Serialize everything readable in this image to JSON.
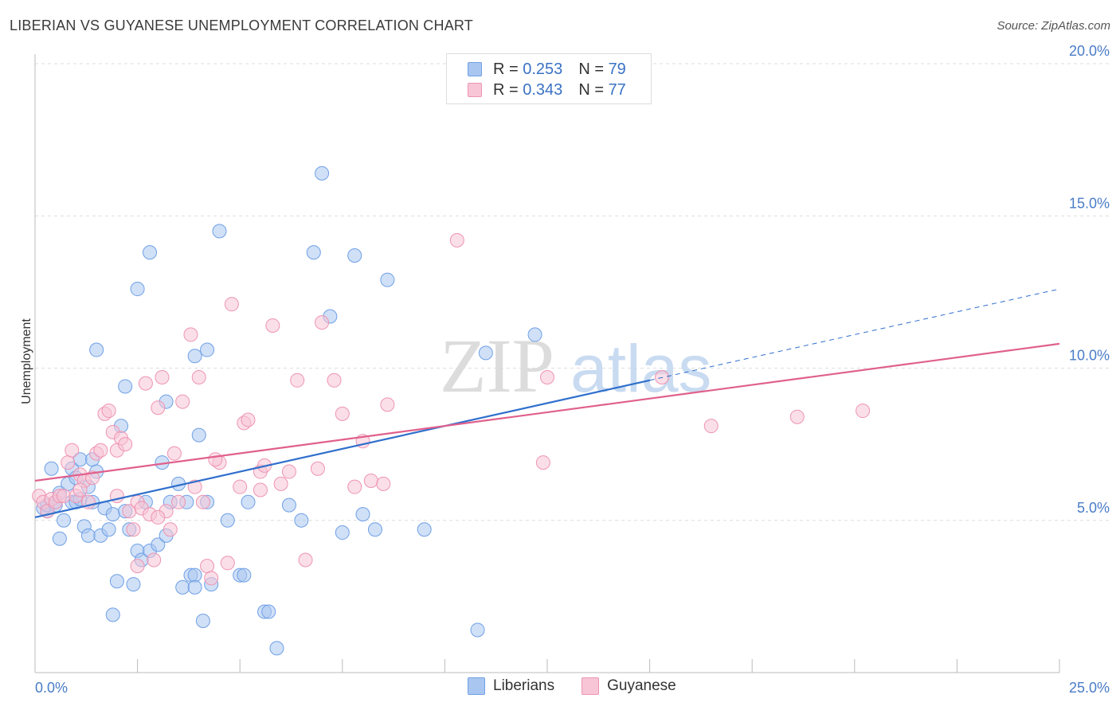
{
  "title": "LIBERIAN VS GUYANESE UNEMPLOYMENT CORRELATION CHART",
  "source": "Source: ZipAtlas.com",
  "watermark": {
    "zip": "ZIP",
    "atlas": "atlas"
  },
  "legend_top": [
    {
      "r_label": "R =",
      "r_value": "0.253",
      "n_label": "N =",
      "n_value": "79"
    },
    {
      "r_label": "R =",
      "r_value": "0.343",
      "n_label": "N =",
      "n_value": "77"
    }
  ],
  "chart_data": {
    "type": "scatter",
    "title": "LIBERIAN VS GUYANESE UNEMPLOYMENT CORRELATION CHART",
    "xlabel": "",
    "ylabel": "Unemployment",
    "xlim": [
      0,
      25
    ],
    "ylim": [
      0,
      20
    ],
    "x_tick_labels": [
      "0.0%",
      "25.0%"
    ],
    "y_ticks": [
      5,
      10,
      15,
      20
    ],
    "y_tick_labels": [
      "5.0%",
      "10.0%",
      "15.0%",
      "20.0%"
    ],
    "grid": true,
    "legend_position": "bottom-center",
    "series": [
      {
        "name": "Liberians",
        "color": "#6fa0e6",
        "fill": "#a9c6f0",
        "trend_color": "#2f6fcc",
        "trend": {
          "x0": 0,
          "y0": 5.1,
          "x1": 15,
          "y1": 9.6,
          "dash_x1": 25,
          "dash_y1": 12.6
        },
        "points": [
          [
            0.2,
            5.4
          ],
          [
            0.3,
            5.3
          ],
          [
            0.3,
            5.5
          ],
          [
            0.4,
            6.7
          ],
          [
            0.5,
            5.5
          ],
          [
            0.5,
            5.6
          ],
          [
            0.6,
            4.4
          ],
          [
            0.6,
            5.9
          ],
          [
            0.7,
            5.0
          ],
          [
            0.8,
            6.2
          ],
          [
            0.9,
            5.6
          ],
          [
            0.9,
            6.7
          ],
          [
            1.0,
            5.6
          ],
          [
            1.0,
            6.4
          ],
          [
            1.1,
            5.7
          ],
          [
            1.1,
            7.0
          ],
          [
            1.2,
            4.8
          ],
          [
            1.3,
            6.1
          ],
          [
            1.3,
            4.5
          ],
          [
            1.4,
            7.0
          ],
          [
            1.4,
            5.6
          ],
          [
            1.5,
            6.6
          ],
          [
            1.6,
            4.5
          ],
          [
            1.7,
            5.4
          ],
          [
            1.8,
            4.7
          ],
          [
            1.9,
            5.2
          ],
          [
            1.9,
            1.9
          ],
          [
            2.0,
            3.0
          ],
          [
            2.1,
            8.1
          ],
          [
            2.2,
            5.3
          ],
          [
            2.3,
            4.7
          ],
          [
            2.4,
            2.9
          ],
          [
            2.5,
            4.0
          ],
          [
            2.6,
            3.7
          ],
          [
            2.7,
            5.6
          ],
          [
            2.8,
            4.0
          ],
          [
            3.0,
            4.2
          ],
          [
            3.1,
            6.9
          ],
          [
            3.2,
            4.5
          ],
          [
            3.3,
            5.6
          ],
          [
            3.5,
            6.2
          ],
          [
            3.6,
            2.8
          ],
          [
            3.7,
            5.6
          ],
          [
            3.8,
            3.2
          ],
          [
            3.9,
            3.2
          ],
          [
            3.9,
            2.8
          ],
          [
            4.1,
            1.7
          ],
          [
            4.2,
            5.6
          ],
          [
            4.3,
            2.9
          ],
          [
            4.5,
            14.5
          ],
          [
            4.7,
            5.0
          ],
          [
            5.0,
            3.2
          ],
          [
            5.1,
            3.2
          ],
          [
            5.2,
            5.6
          ],
          [
            5.6,
            2.0
          ],
          [
            5.7,
            2.0
          ],
          [
            5.9,
            0.8
          ],
          [
            6.2,
            5.5
          ],
          [
            6.5,
            5.0
          ],
          [
            6.8,
            13.8
          ],
          [
            7.0,
            16.4
          ],
          [
            7.2,
            11.7
          ],
          [
            7.5,
            4.6
          ],
          [
            7.8,
            13.7
          ],
          [
            8.0,
            5.2
          ],
          [
            8.3,
            4.7
          ],
          [
            8.6,
            12.9
          ],
          [
            9.5,
            4.7
          ],
          [
            10.8,
            1.4
          ],
          [
            11.0,
            10.5
          ],
          [
            12.2,
            11.1
          ],
          [
            1.5,
            10.6
          ],
          [
            2.2,
            9.4
          ],
          [
            2.5,
            12.6
          ],
          [
            2.8,
            13.8
          ],
          [
            3.2,
            8.9
          ],
          [
            3.9,
            10.4
          ],
          [
            4.0,
            7.8
          ],
          [
            4.2,
            10.6
          ]
        ]
      },
      {
        "name": "Guyanese",
        "color": "#ee94b2",
        "fill": "#f7c5d6",
        "trend_color": "#e0608c",
        "trend": {
          "x0": 0,
          "y0": 6.3,
          "x1": 25,
          "y1": 10.8
        },
        "points": [
          [
            0.1,
            5.8
          ],
          [
            0.2,
            5.6
          ],
          [
            0.3,
            5.3
          ],
          [
            0.4,
            5.7
          ],
          [
            0.5,
            5.6
          ],
          [
            0.6,
            5.8
          ],
          [
            0.7,
            5.8
          ],
          [
            0.8,
            6.9
          ],
          [
            0.9,
            7.3
          ],
          [
            1.0,
            5.8
          ],
          [
            1.1,
            6.5
          ],
          [
            1.2,
            6.3
          ],
          [
            1.3,
            5.6
          ],
          [
            1.4,
            6.4
          ],
          [
            1.5,
            7.2
          ],
          [
            1.6,
            7.3
          ],
          [
            1.7,
            8.5
          ],
          [
            1.8,
            8.6
          ],
          [
            1.9,
            7.9
          ],
          [
            2.0,
            7.3
          ],
          [
            2.1,
            7.7
          ],
          [
            2.2,
            7.5
          ],
          [
            2.3,
            5.3
          ],
          [
            2.4,
            4.7
          ],
          [
            2.5,
            5.6
          ],
          [
            2.5,
            3.5
          ],
          [
            2.6,
            5.4
          ],
          [
            2.7,
            9.5
          ],
          [
            2.8,
            5.2
          ],
          [
            2.9,
            3.7
          ],
          [
            3.0,
            8.7
          ],
          [
            3.1,
            9.7
          ],
          [
            3.2,
            5.3
          ],
          [
            3.3,
            4.7
          ],
          [
            3.4,
            7.2
          ],
          [
            3.5,
            5.6
          ],
          [
            3.6,
            8.9
          ],
          [
            3.8,
            11.1
          ],
          [
            3.9,
            6.1
          ],
          [
            4.0,
            9.7
          ],
          [
            4.1,
            5.6
          ],
          [
            4.2,
            3.5
          ],
          [
            4.3,
            3.1
          ],
          [
            4.5,
            6.9
          ],
          [
            4.7,
            3.6
          ],
          [
            4.8,
            12.1
          ],
          [
            5.0,
            6.1
          ],
          [
            5.1,
            8.2
          ],
          [
            5.2,
            8.3
          ],
          [
            5.5,
            6.6
          ],
          [
            5.6,
            6.8
          ],
          [
            5.8,
            11.4
          ],
          [
            6.0,
            6.2
          ],
          [
            6.2,
            6.6
          ],
          [
            6.4,
            9.6
          ],
          [
            6.6,
            3.7
          ],
          [
            6.9,
            6.7
          ],
          [
            7.0,
            11.5
          ],
          [
            7.3,
            9.6
          ],
          [
            7.5,
            8.5
          ],
          [
            7.8,
            6.1
          ],
          [
            8.0,
            7.6
          ],
          [
            8.2,
            6.3
          ],
          [
            8.5,
            6.2
          ],
          [
            8.6,
            8.8
          ],
          [
            10.3,
            14.2
          ],
          [
            12.4,
            6.9
          ],
          [
            12.5,
            9.7
          ],
          [
            15.3,
            9.7
          ],
          [
            16.5,
            8.1
          ],
          [
            18.6,
            8.4
          ],
          [
            20.2,
            8.6
          ],
          [
            1.1,
            6.0
          ],
          [
            2.0,
            5.8
          ],
          [
            3.0,
            5.1
          ],
          [
            4.4,
            7.0
          ],
          [
            5.5,
            6.0
          ]
        ]
      }
    ]
  }
}
